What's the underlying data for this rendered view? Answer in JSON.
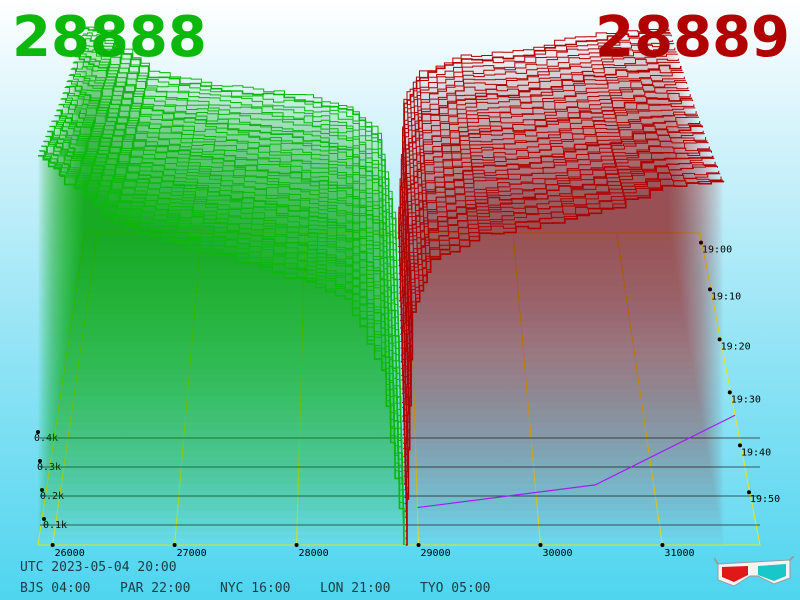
{
  "header": {
    "best_bid": "28888",
    "best_ask": "28889"
  },
  "colors": {
    "bid": "#0db80d",
    "ask": "#b00000",
    "grid": "#e6e61e",
    "baseline": "#a020f0"
  },
  "clocks": {
    "utc": "UTC 2023-05-04 20:00",
    "bjs": "BJS 04:00",
    "par": "PAR 22:00",
    "nyc": "NYC 16:00",
    "lon": "LON 21:00",
    "tyo": "TYO 05:00"
  },
  "chart_data": {
    "type": "area",
    "title": "",
    "x_axis": {
      "label": "",
      "ticks": [
        "26000",
        "27000",
        "28000",
        "29000",
        "30000",
        "31000"
      ],
      "range": [
        25880,
        31800
      ]
    },
    "depth_axis": {
      "label": "",
      "ticks": [
        "0.1k",
        "0.2k",
        "0.3k",
        "0.4k"
      ]
    },
    "time_axis": {
      "label": "",
      "ticks": [
        "19:00",
        "19:10",
        "19:20",
        "19:30",
        "19:40",
        "19:50"
      ]
    },
    "series": [
      {
        "side": "bid",
        "color": "#0db80d",
        "points_oldest": [
          [
            25880,
            310
          ],
          [
            26100,
            300
          ],
          [
            26500,
            240
          ],
          [
            27000,
            225
          ],
          [
            27500,
            215
          ],
          [
            28000,
            205
          ],
          [
            28400,
            190
          ],
          [
            28700,
            150
          ],
          [
            28870,
            0
          ]
        ],
        "points_newest": [
          [
            25880,
            420
          ],
          [
            26100,
            390
          ],
          [
            26500,
            345
          ],
          [
            27000,
            325
          ],
          [
            27500,
            305
          ],
          [
            28000,
            285
          ],
          [
            28400,
            265
          ],
          [
            28700,
            185
          ],
          [
            28880,
            0
          ]
        ]
      },
      {
        "side": "ask",
        "color": "#b00000",
        "points_oldest": [
          [
            28889,
            0
          ],
          [
            28950,
            200
          ],
          [
            29100,
            240
          ],
          [
            29500,
            265
          ],
          [
            30000,
            270
          ],
          [
            30500,
            290
          ],
          [
            31000,
            300
          ],
          [
            31500,
            305
          ]
        ],
        "points_newest": [
          [
            28895,
            0
          ],
          [
            28950,
            250
          ],
          [
            29100,
            305
          ],
          [
            29500,
            335
          ],
          [
            30000,
            345
          ],
          [
            30500,
            360
          ],
          [
            31000,
            385
          ],
          [
            31500,
            390
          ]
        ]
      }
    ],
    "grid": true
  }
}
